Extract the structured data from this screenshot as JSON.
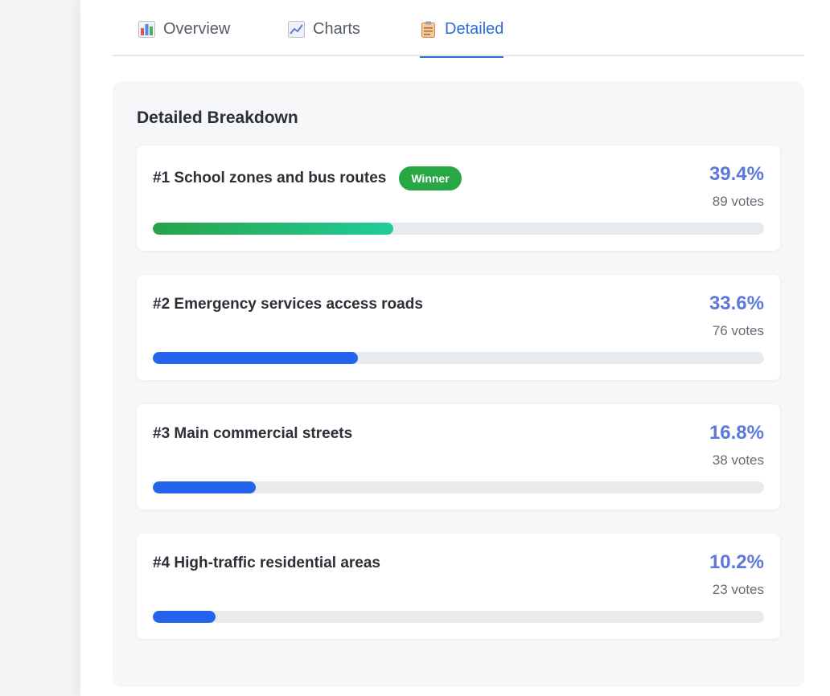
{
  "tabs": [
    {
      "label": "Overview",
      "icon": "bar-chart-icon"
    },
    {
      "label": "Charts",
      "icon": "line-chart-icon"
    },
    {
      "label": "Detailed",
      "icon": "clipboard-icon",
      "active": true
    }
  ],
  "section_title": "Detailed Breakdown",
  "colors": {
    "accent": "#2d6bd6",
    "percent": "#5c78d8",
    "bar": "#2463eb",
    "winner": "#28a745"
  },
  "results": [
    {
      "name": "#1 School zones and bus routes",
      "badge": "Winner",
      "percent_label": "39.4%",
      "votes_label": "89 votes",
      "share": 39.4
    },
    {
      "name": "#2 Emergency services access roads",
      "percent_label": "33.6%",
      "votes_label": "76 votes",
      "share": 33.6
    },
    {
      "name": "#3 Main commercial streets",
      "percent_label": "16.8%",
      "votes_label": "38 votes",
      "share": 16.8
    },
    {
      "name": "#4 High-traffic residential areas",
      "percent_label": "10.2%",
      "votes_label": "23 votes",
      "share": 10.2
    }
  ]
}
